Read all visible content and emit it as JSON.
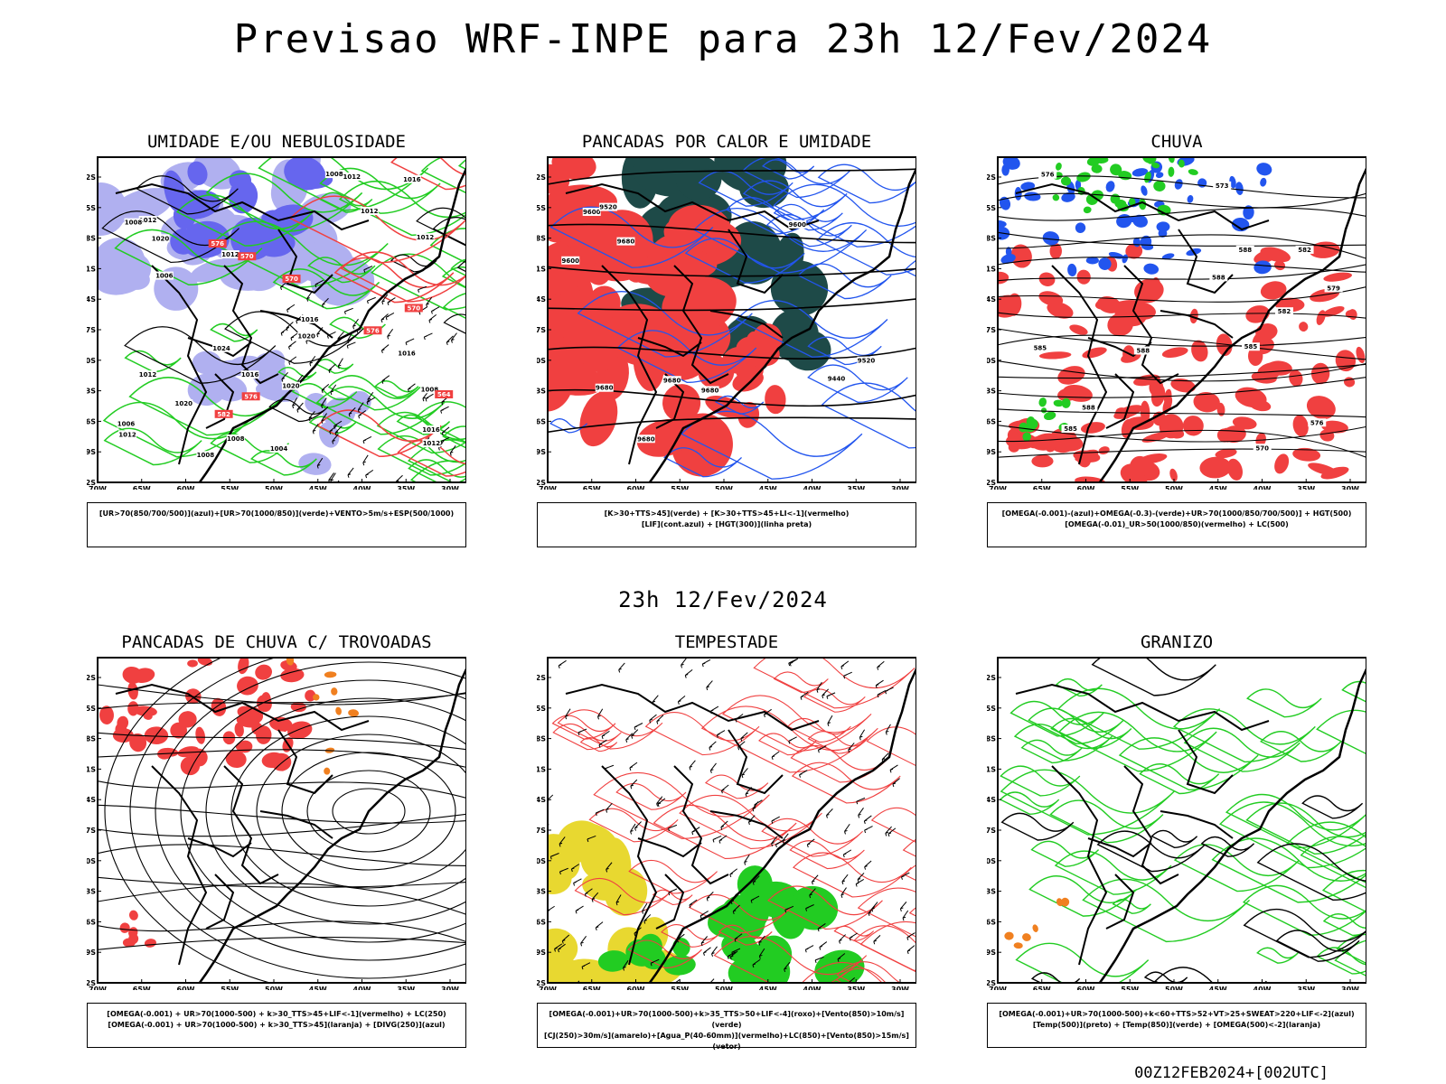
{
  "title": "Previsao WRF-INPE  para 23h 12/Fev/2024",
  "subtitle": "23h 12/Fev/2024",
  "footer": "00Z12FEB2024+[002UTC]",
  "axes": {
    "lat_labels": [
      "12S",
      "15S",
      "18S",
      "21S",
      "24S",
      "27S",
      "30S",
      "33S",
      "36S",
      "39S",
      "42S"
    ],
    "lon_labels": [
      "70W",
      "65W",
      "60W",
      "55W",
      "50W",
      "45W",
      "40W",
      "35W",
      "30W"
    ]
  },
  "colors": {
    "blue_fill": "#6666ee",
    "light_blue": "#b0b0f0",
    "red_fill": "#f04040",
    "dark_teal": "#1e4a48",
    "green": "#22cc22",
    "yellow": "#e8d830",
    "orange": "#f08020",
    "contour_blue": "#2255ee"
  },
  "panels": [
    {
      "id": "umidade",
      "title": "UMIDADE E/OU NEBULOSIDADE",
      "legend": [
        "[UR>70(850/700/500)](azul)+[UR>70(1000/850)](verde)+VENTO>5m/s+ESP(500/1000)"
      ],
      "contour_labels": [
        "1012",
        "1016",
        "1020",
        "1020",
        "1012",
        "1012",
        "1016",
        "1016",
        "1012",
        "1008",
        "1006",
        "1012",
        "1012",
        "1008",
        "1006",
        "1004",
        "1008",
        "1012",
        "1016",
        "1024",
        "1020",
        "1016",
        "1020",
        "1008",
        "1012",
        "1008"
      ],
      "red_labels": [
        "570",
        "576",
        "576",
        "570",
        "564",
        "570",
        "576",
        "582"
      ]
    },
    {
      "id": "pancadas-calor",
      "title": "PANCADAS POR CALOR E UMIDADE",
      "legend": [
        "[K>30+TTS>45](verde) + [K>30+TTS>45+LI<-1](vermelho)",
        "[LIF](cont.azul) + [HGT(300)](linha preta)"
      ],
      "contour_labels": [
        "9680",
        "9680",
        "9680",
        "9680",
        "9600",
        "9600",
        "9680",
        "9600",
        "9520",
        "9520",
        "9440"
      ]
    },
    {
      "id": "chuva",
      "title": "CHUVA",
      "legend": [
        "[OMEGA(-0.001)-(azul)+OMEGA(-0.3)-(verde)+UR>70(1000/850/700/500)] + HGT(500)",
        "[OMEGA(-0.01)_UR>50(1000/850)(vermelho) + LC(500)"
      ],
      "contour_labels": [
        "588",
        "585",
        "588",
        "588",
        "585",
        "582",
        "579",
        "576",
        "573",
        "570",
        "576",
        "582",
        "585",
        "588"
      ]
    },
    {
      "id": "pancadas-trovoadas",
      "title": "PANCADAS DE CHUVA C/ TROVOADAS",
      "legend": [
        "[OMEGA(-0.001) + UR>70(1000-500) + k>30_TTS>45+LIF<-1](vermelho) + LC(250)",
        "[OMEGA(-0.001) + UR>70(1000-500) + k>30_TTS>45](laranja) + [DIVG(250)](azul)"
      ]
    },
    {
      "id": "tempestade",
      "title": "TEMPESTADE",
      "legend": [
        "[OMEGA(-0.001)+UR>70(1000-500)+k>35_TTS>50+LIF<-4](roxo)+[Vento(850)>10m/s](verde)",
        "[CJ(250)>30m/s](amarelo)+[Agua_P(40-60mm)](vermelho)+LC(850)+[Vento(850)>15m/s](vetor)"
      ]
    },
    {
      "id": "granizo",
      "title": "GRANIZO",
      "legend": [
        "[OMEGA(-0.001)+UR>70(1000-500)+k<60+TTS>52+VT>25+SWEAT>220+LIF<-2](azul)",
        "[Temp(500)](preto) + [Temp(850)](verde) + [OMEGA(500)<-2](laranja)"
      ]
    }
  ]
}
